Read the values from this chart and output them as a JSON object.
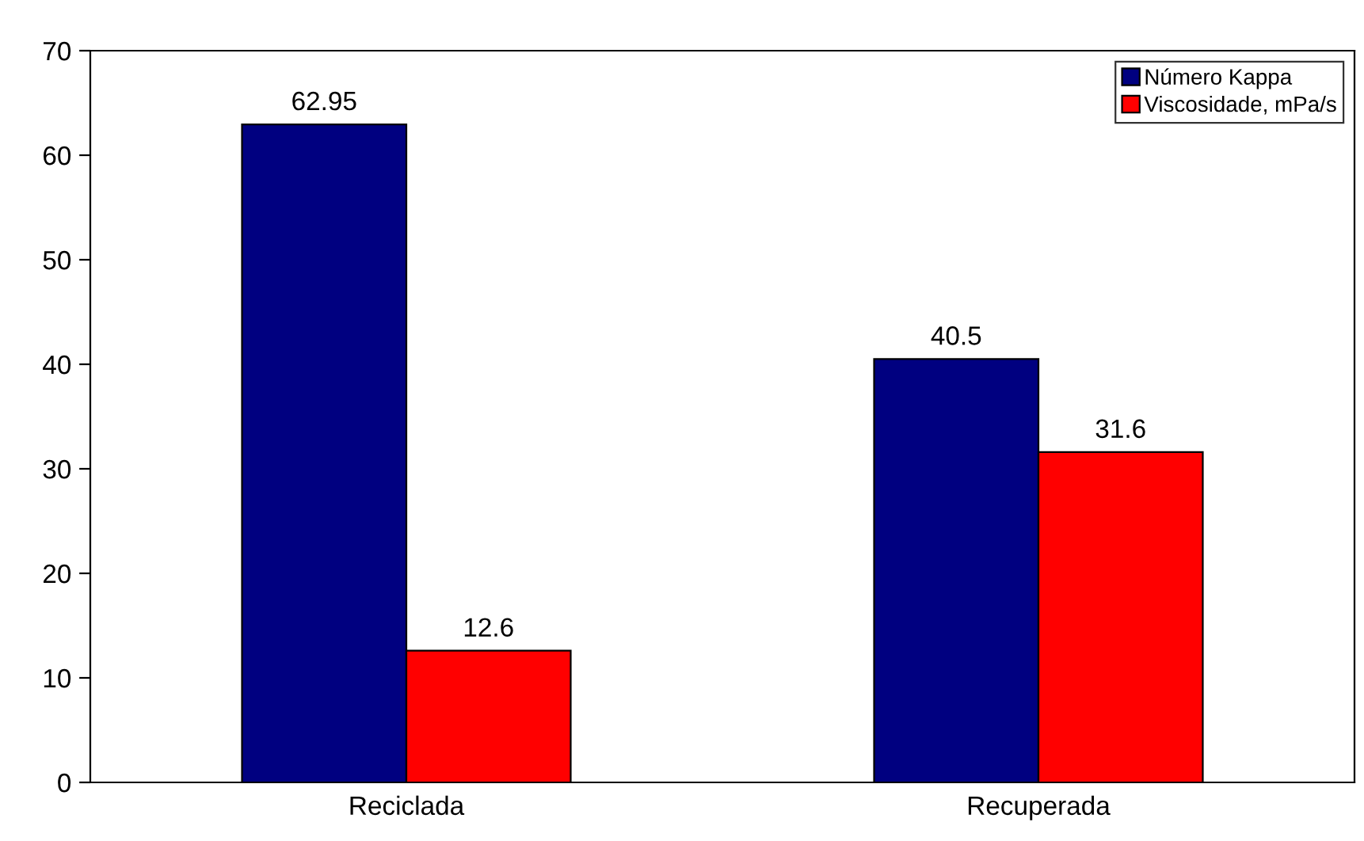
{
  "chart_data": {
    "type": "bar",
    "categories": [
      "Reciclada",
      "Recuperada"
    ],
    "series": [
      {
        "name": "Número Kappa",
        "color": "#000080",
        "values": [
          62.95,
          40.5
        ]
      },
      {
        "name": "Viscosidade, mPa/s",
        "color": "#ff0000",
        "values": [
          12.6,
          31.6
        ]
      }
    ],
    "ylim": [
      0,
      70
    ],
    "yticks": [
      0,
      10,
      20,
      30,
      40,
      50,
      60,
      70
    ],
    "grid": false,
    "legend": "top right",
    "data_labels": true
  }
}
